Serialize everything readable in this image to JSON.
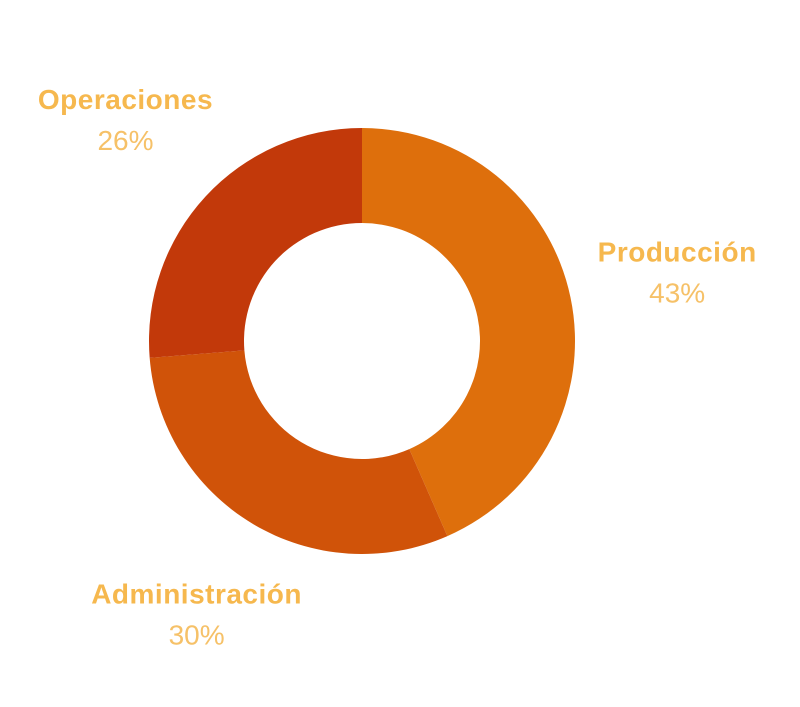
{
  "chart_data": {
    "type": "donut",
    "categories": [
      "Producción",
      "Administración",
      "Operaciones"
    ],
    "values": [
      43,
      30,
      26
    ],
    "value_labels": [
      "43%",
      "30%",
      "26%"
    ],
    "colors": [
      "#de6f0c",
      "#d05309",
      "#c2390a"
    ]
  }
}
